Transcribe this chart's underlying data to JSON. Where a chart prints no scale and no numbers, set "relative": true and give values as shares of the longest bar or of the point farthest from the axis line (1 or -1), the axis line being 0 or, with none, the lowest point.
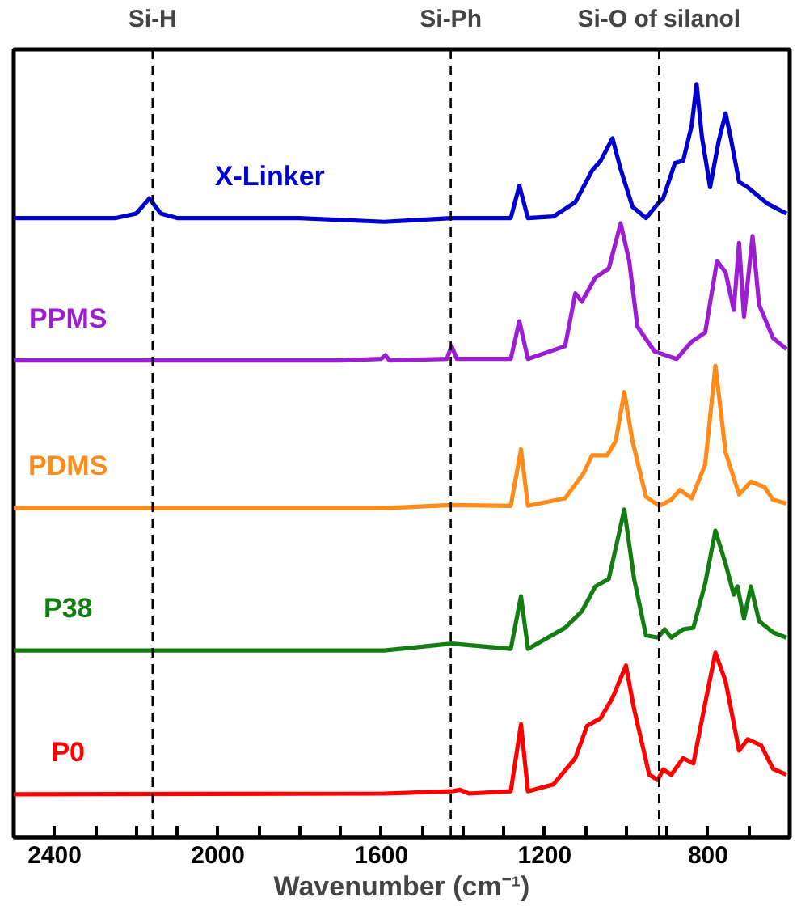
{
  "chart_data": {
    "type": "line",
    "xlabel": "Wavenumber (cm⁻¹)",
    "relative": true,
    "grid": false,
    "tick_labels": "x",
    "xlim": [
      2500,
      600
    ],
    "xticks": [
      2400,
      {
        "value": 2300,
        "label": null
      },
      {
        "value": 2200,
        "label": null
      },
      {
        "value": 2100,
        "label": null
      },
      2000,
      {
        "value": 1900,
        "label": null
      },
      {
        "value": 1800,
        "label": null
      },
      {
        "value": 1700,
        "label": null
      },
      1600,
      {
        "value": 1500,
        "label": null
      },
      {
        "value": 1400,
        "label": null
      },
      {
        "value": 1300,
        "label": null
      },
      1200,
      {
        "value": 1100,
        "label": null
      },
      {
        "value": 1000,
        "label": null
      },
      {
        "value": 900,
        "label": null
      },
      800,
      {
        "value": 700,
        "label": null
      }
    ],
    "ref_lines": [
      {
        "axis": "x",
        "value": 2160,
        "label": "Si-H",
        "color": "#000000",
        "line_style": "dashed"
      },
      {
        "axis": "x",
        "value": 1430,
        "label": "Si-Ph",
        "color": "#000000",
        "line_style": "dashed"
      },
      {
        "axis": "x",
        "value": 920,
        "label": "Si-O of silanol",
        "color": "#000000",
        "line_style": "dashed"
      }
    ],
    "series": [
      {
        "name": "X-Linker",
        "color": "#0000cc",
        "x": [
          2500,
          2250,
          2200,
          2168,
          2140,
          2100,
          1800,
          1593,
          1428,
          1283,
          1262,
          1241,
          1179,
          1125,
          1084,
          1063,
          1034,
          1014,
          985,
          952,
          923,
          910,
          881,
          861,
          840,
          828,
          815,
          795,
          774,
          757,
          745,
          724,
          703,
          654,
          608
        ],
        "values": [
          0.822,
          0.822,
          0.828,
          0.848,
          0.828,
          0.822,
          0.822,
          0.817,
          0.822,
          0.822,
          0.865,
          0.822,
          0.824,
          0.843,
          0.885,
          0.898,
          0.928,
          0.887,
          0.837,
          0.822,
          0.841,
          0.848,
          0.895,
          0.898,
          0.945,
          1.0,
          0.93,
          0.863,
          0.924,
          0.961,
          0.93,
          0.87,
          0.863,
          0.841,
          0.828
        ]
      },
      {
        "name": "PPMS",
        "color": "#9b1fd1",
        "x": [
          2500,
          2000,
          1700,
          1600,
          1590,
          1580,
          1440,
          1428,
          1415,
          1283,
          1262,
          1241,
          1150,
          1125,
          1109,
          1076,
          1043,
          1014,
          993,
          973,
          931,
          877,
          840,
          807,
          778,
          757,
          737,
          724,
          712,
          691,
          675,
          641,
          608
        ],
        "values": [
          0.633,
          0.633,
          0.633,
          0.635,
          0.64,
          0.633,
          0.635,
          0.652,
          0.635,
          0.635,
          0.685,
          0.635,
          0.652,
          0.722,
          0.711,
          0.743,
          0.755,
          0.815,
          0.765,
          0.678,
          0.645,
          0.635,
          0.658,
          0.67,
          0.765,
          0.75,
          0.7,
          0.789,
          0.691,
          0.798,
          0.707,
          0.663,
          0.648
        ]
      },
      {
        "name": "PDMS",
        "color": "#ff8c1a",
        "x": [
          2500,
          1593,
          1428,
          1283,
          1258,
          1241,
          1150,
          1105,
          1084,
          1047,
          1026,
          1005,
          985,
          952,
          919,
          890,
          869,
          840,
          807,
          782,
          757,
          724,
          695,
          662,
          641,
          608
        ],
        "values": [
          0.437,
          0.437,
          0.441,
          0.44,
          0.515,
          0.44,
          0.45,
          0.483,
          0.507,
          0.507,
          0.526,
          0.591,
          0.526,
          0.452,
          0.44,
          0.448,
          0.461,
          0.45,
          0.495,
          0.626,
          0.511,
          0.455,
          0.472,
          0.465,
          0.448,
          0.443
        ]
      },
      {
        "name": "P38",
        "color": "#137d13",
        "x": [
          2500,
          1593,
          1428,
          1283,
          1258,
          1241,
          1150,
          1109,
          1076,
          1043,
          1005,
          981,
          952,
          923,
          906,
          890,
          861,
          836,
          807,
          782,
          757,
          737,
          728,
          712,
          695,
          675,
          641,
          608
        ],
        "values": [
          0.248,
          0.248,
          0.257,
          0.25,
          0.32,
          0.25,
          0.278,
          0.3,
          0.333,
          0.343,
          0.435,
          0.343,
          0.268,
          0.265,
          0.276,
          0.265,
          0.276,
          0.278,
          0.337,
          0.407,
          0.363,
          0.322,
          0.333,
          0.29,
          0.333,
          0.287,
          0.272,
          0.265
        ]
      },
      {
        "name": "P0",
        "color": "#ff0000",
        "x": [
          2500,
          1593,
          1428,
          1407,
          1386,
          1283,
          1258,
          1241,
          1179,
          1125,
          1096,
          1063,
          1034,
          1001,
          981,
          944,
          923,
          910,
          890,
          861,
          836,
          807,
          782,
          757,
          724,
          703,
          670,
          641,
          608
        ],
        "values": [
          0.057,
          0.058,
          0.061,
          0.063,
          0.058,
          0.061,
          0.15,
          0.061,
          0.07,
          0.105,
          0.148,
          0.158,
          0.185,
          0.228,
          0.17,
          0.083,
          0.076,
          0.09,
          0.083,
          0.105,
          0.098,
          0.178,
          0.245,
          0.207,
          0.115,
          0.13,
          0.122,
          0.091,
          0.083
        ]
      }
    ]
  }
}
